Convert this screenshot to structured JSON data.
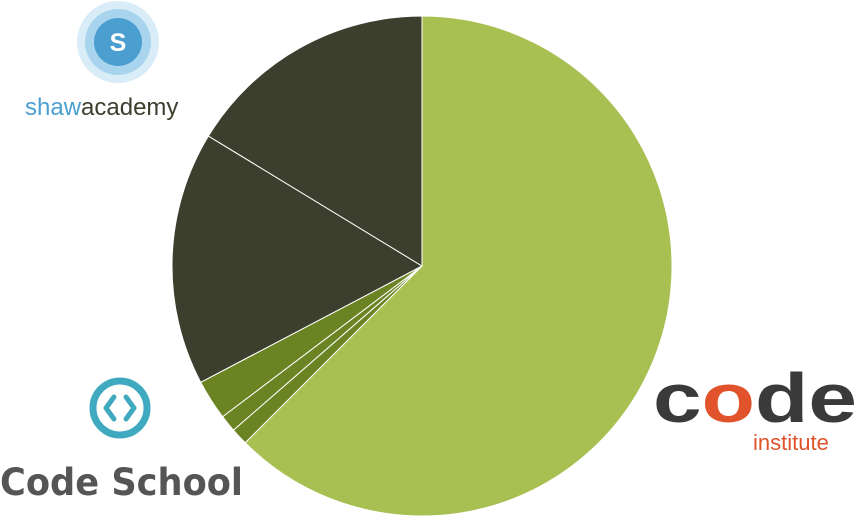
{
  "chart_data": {
    "type": "pie",
    "start_angle_deg": 0,
    "direction": "clockwise",
    "slices": [
      {
        "value": 62.5,
        "color": "#a8bf52"
      },
      {
        "value": 1.1,
        "color": "#6b8423"
      },
      {
        "value": 1.1,
        "color": "#6b8423"
      },
      {
        "value": 2.6,
        "color": "#6b8423"
      },
      {
        "value": 16.4,
        "color": "#3c3f2e"
      },
      {
        "value": 16.3,
        "color": "#3c3f2e"
      }
    ]
  },
  "logos": {
    "shaw_academy": {
      "letter": "S",
      "word_part1": "shaw",
      "word_part2": "academy"
    },
    "code_school": {
      "text": "Code School"
    },
    "code_institute": {
      "text_c": "c",
      "text_o": "o",
      "text_de": "de",
      "subtitle": "institute"
    }
  },
  "colors": {
    "shaw_blue": "#4a9fd0",
    "shaw_ring": "#bfe0f1",
    "code_school_teal": "#3fa9c0",
    "code_school_text": "#555555",
    "code_institute_dark": "#3a3a3a",
    "code_institute_orange": "#e0532b"
  }
}
